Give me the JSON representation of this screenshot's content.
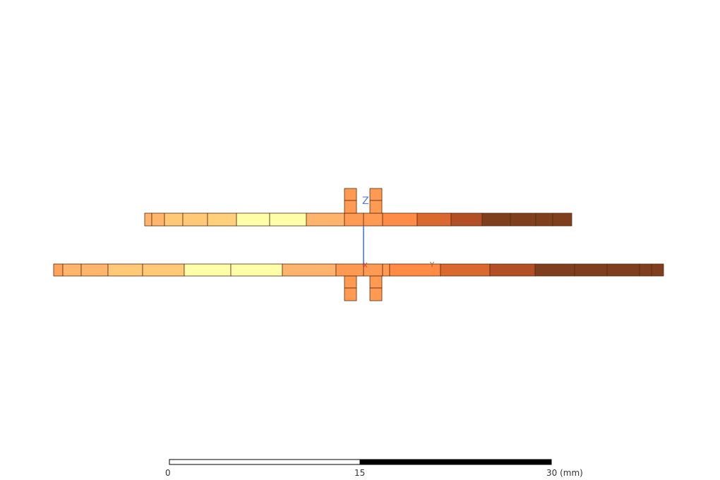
{
  "viewport": {
    "element_colors": {
      "c1": "#ffa35a",
      "c2": "#ffb56b",
      "c3": "#ffc978",
      "c4": "#ffffaa",
      "c5": "#ffb46d",
      "c6": "#ff8c46",
      "c7": "#ff8b44",
      "c8": "#d9692f",
      "c9": "#b24f26",
      "c10": "#7f3e1e",
      "edge": "#5a2a10"
    }
  },
  "axis_triad": {
    "z_label": "Z",
    "x_label": "X",
    "y_label": "Y",
    "z_color": "#3f6fd8",
    "x_color": "#d33a3a",
    "y_color": "#4aa84a"
  },
  "scale_bar": {
    "label_start": "0",
    "label_mid": "15",
    "label_end": "30 (mm)"
  }
}
